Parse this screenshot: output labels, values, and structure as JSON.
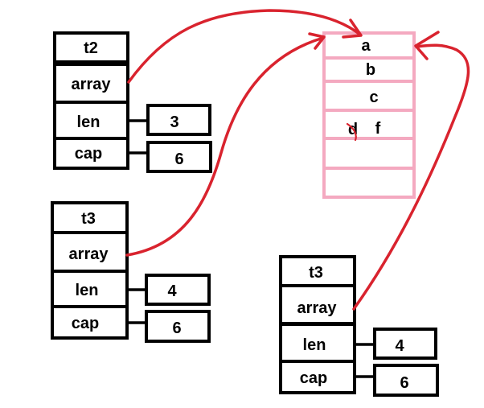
{
  "colors": {
    "arrow": "#d9232e",
    "array_border": "#f4a9c0",
    "struct_border": "#000000"
  },
  "structs": [
    {
      "name": "t2",
      "field_array": "array",
      "field_len": "len",
      "field_cap": "cap",
      "len_value": "3",
      "cap_value": "6"
    },
    {
      "name": "t3",
      "field_array": "array",
      "field_len": "len",
      "field_cap": "cap",
      "len_value": "4",
      "cap_value": "6"
    },
    {
      "name": "t3",
      "field_array": "array",
      "field_len": "len",
      "field_cap": "cap",
      "len_value": "4",
      "cap_value": "6"
    }
  ],
  "backing_array": {
    "cells": [
      "a",
      "b",
      "c",
      "f",
      "",
      ""
    ],
    "struck_value": "d"
  }
}
